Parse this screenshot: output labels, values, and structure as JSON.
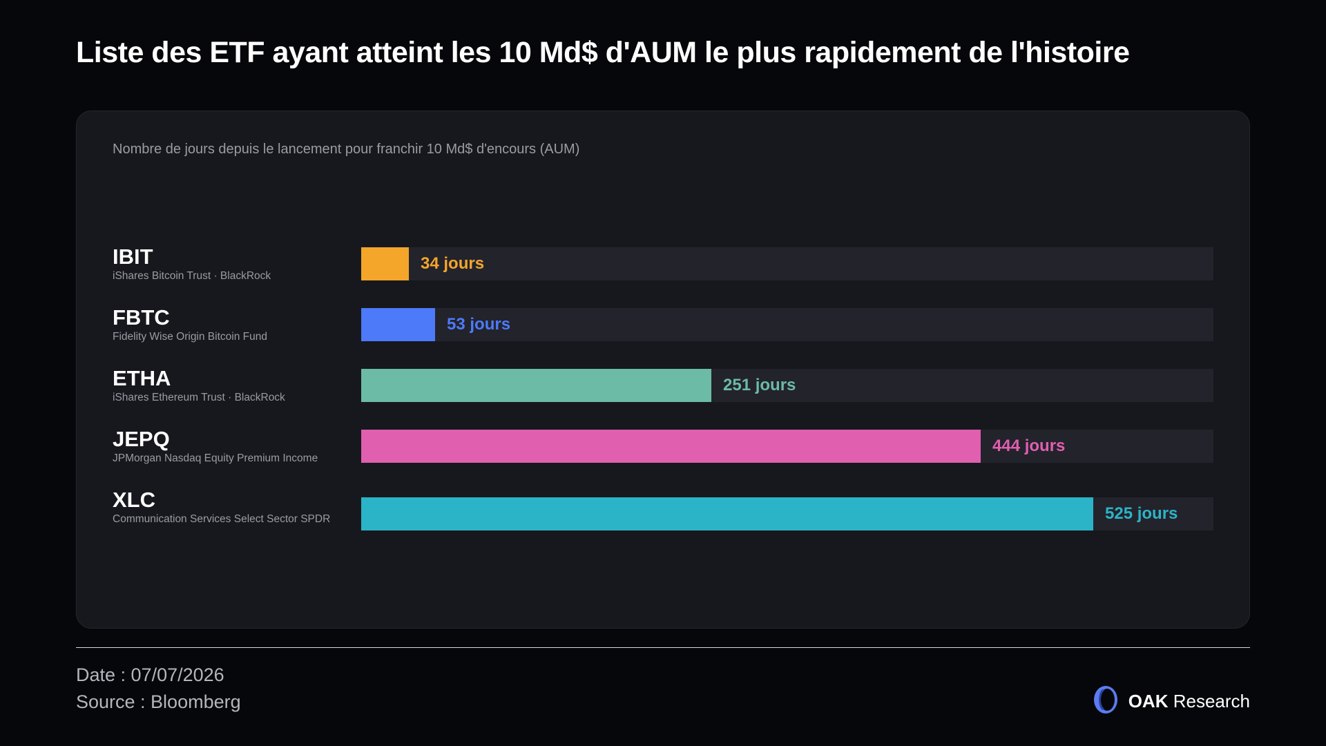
{
  "title": "Liste des ETF ayant atteint les 10 Md$ d'AUM le plus rapidement de l'histoire",
  "footer": {
    "date": "Date : 07/07/2026",
    "source": "Source : Bloomberg",
    "brand_bold": "OAK",
    "brand_rest": "Research",
    "logo_icon": "oak-research-logo-icon"
  },
  "chart_data": {
    "type": "bar",
    "orientation": "horizontal",
    "subtitle": "Nombre de jours depuis le lancement pour franchir 10 Md$ d'encours (AUM)",
    "xlim": [
      0,
      611
    ],
    "value_suffix": " jours",
    "categories": [
      "IBIT",
      "FBTC",
      "ETHA",
      "JEPQ",
      "XLC"
    ],
    "descriptions": [
      "iShares Bitcoin Trust · BlackRock",
      "Fidelity Wise Origin Bitcoin Fund",
      "iShares Ethereum Trust · BlackRock",
      "JPMorgan Nasdaq Equity Premium Income",
      "Communication Services Select Sector SPDR"
    ],
    "values": [
      34,
      53,
      251,
      444,
      525
    ],
    "value_labels": [
      "34 jours",
      "53 jours",
      "251 jours",
      "444 jours",
      "525 jours"
    ],
    "colors": [
      "#f4a62a",
      "#4c7af8",
      "#6bbba6",
      "#e05faf",
      "#2bb4c7"
    ],
    "track_color": "#23232c",
    "grid": false,
    "legend": "none"
  }
}
